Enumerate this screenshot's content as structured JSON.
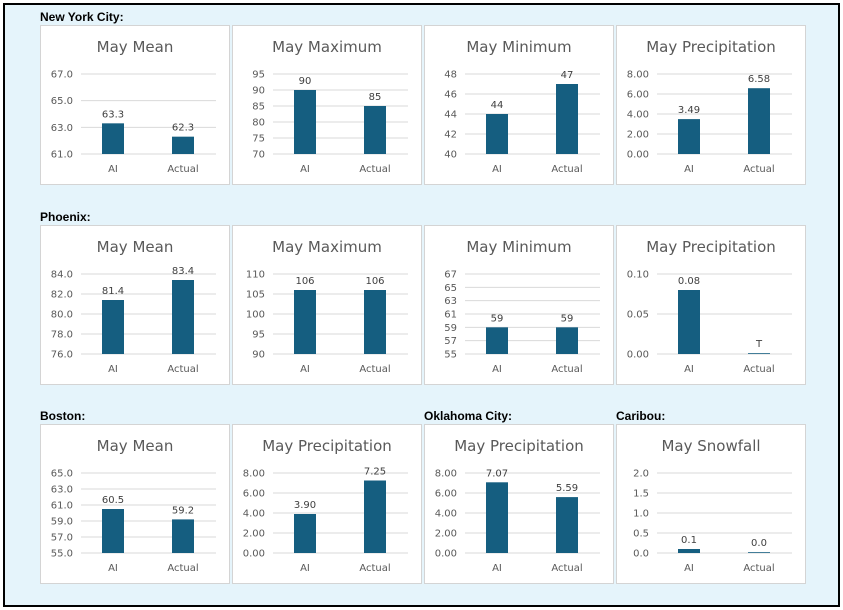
{
  "colors": {
    "bar": "#155e80",
    "grid": "#d9d9d9",
    "background": "#e5f4fb"
  },
  "sections": [
    {
      "label": "New York City:"
    },
    {
      "label": "Phoenix:"
    },
    {
      "label": "Boston:"
    },
    {
      "label": "Oklahoma City:"
    },
    {
      "label": "Caribou:"
    }
  ],
  "chart_data": [
    {
      "type": "bar",
      "group": "New York City:",
      "title": "May Mean",
      "categories": [
        "AI",
        "Actual"
      ],
      "values": [
        63.3,
        62.3
      ],
      "value_labels": [
        "63.3",
        "62.3"
      ],
      "ylim": [
        61.0,
        67.0
      ],
      "yticks": [
        "61.0",
        "63.0",
        "65.0",
        "67.0"
      ],
      "tick_values": [
        61,
        63,
        65,
        67
      ]
    },
    {
      "type": "bar",
      "group": "New York City:",
      "title": "May Maximum",
      "categories": [
        "AI",
        "Actual"
      ],
      "values": [
        90,
        85
      ],
      "value_labels": [
        "90",
        "85"
      ],
      "ylim": [
        70,
        95
      ],
      "yticks": [
        "70",
        "75",
        "80",
        "85",
        "90",
        "95"
      ],
      "tick_values": [
        70,
        75,
        80,
        85,
        90,
        95
      ]
    },
    {
      "type": "bar",
      "group": "New York City:",
      "title": "May Minimum",
      "categories": [
        "AI",
        "Actual"
      ],
      "values": [
        44,
        47
      ],
      "value_labels": [
        "44",
        "47"
      ],
      "ylim": [
        40,
        48
      ],
      "yticks": [
        "40",
        "42",
        "44",
        "46",
        "48"
      ],
      "tick_values": [
        40,
        42,
        44,
        46,
        48
      ]
    },
    {
      "type": "bar",
      "group": "New York City:",
      "title": "May Precipitation",
      "categories": [
        "AI",
        "Actual"
      ],
      "values": [
        3.49,
        6.58
      ],
      "value_labels": [
        "3.49",
        "6.58"
      ],
      "ylim": [
        0,
        8
      ],
      "yticks": [
        "0.00",
        "2.00",
        "4.00",
        "6.00",
        "8.00"
      ],
      "tick_values": [
        0,
        2,
        4,
        6,
        8
      ]
    },
    {
      "type": "bar",
      "group": "Phoenix:",
      "title": "May Mean",
      "categories": [
        "AI",
        "Actual"
      ],
      "values": [
        81.4,
        83.4
      ],
      "value_labels": [
        "81.4",
        "83.4"
      ],
      "ylim": [
        76.0,
        84.0
      ],
      "yticks": [
        "76.0",
        "78.0",
        "80.0",
        "82.0",
        "84.0"
      ],
      "tick_values": [
        76,
        78,
        80,
        82,
        84
      ]
    },
    {
      "type": "bar",
      "group": "Phoenix:",
      "title": "May Maximum",
      "categories": [
        "AI",
        "Actual"
      ],
      "values": [
        106,
        106
      ],
      "value_labels": [
        "106",
        "106"
      ],
      "ylim": [
        90,
        110
      ],
      "yticks": [
        "90",
        "95",
        "100",
        "105",
        "110"
      ],
      "tick_values": [
        90,
        95,
        100,
        105,
        110
      ]
    },
    {
      "type": "bar",
      "group": "Phoenix:",
      "title": "May Minimum",
      "categories": [
        "AI",
        "Actual"
      ],
      "values": [
        59,
        59
      ],
      "value_labels": [
        "59",
        "59"
      ],
      "ylim": [
        55,
        67
      ],
      "yticks": [
        "55",
        "57",
        "59",
        "61",
        "63",
        "65",
        "67"
      ],
      "tick_values": [
        55,
        57,
        59,
        61,
        63,
        65,
        67
      ]
    },
    {
      "type": "bar",
      "group": "Phoenix:",
      "title": "May Precipitation",
      "categories": [
        "AI",
        "Actual"
      ],
      "values": [
        0.08,
        0.001
      ],
      "value_labels": [
        "0.08",
        "T"
      ],
      "ylim": [
        0,
        0.1
      ],
      "yticks": [
        "0.00",
        "0.05",
        "0.10"
      ],
      "tick_values": [
        0,
        0.05,
        0.1
      ]
    },
    {
      "type": "bar",
      "group": "Boston:",
      "title": "May Mean",
      "categories": [
        "AI",
        "Actual"
      ],
      "values": [
        60.5,
        59.2
      ],
      "value_labels": [
        "60.5",
        "59.2"
      ],
      "ylim": [
        55.0,
        65.0
      ],
      "yticks": [
        "55.0",
        "57.0",
        "59.0",
        "61.0",
        "63.0",
        "65.0"
      ],
      "tick_values": [
        55,
        57,
        59,
        61,
        63,
        65
      ]
    },
    {
      "type": "bar",
      "group": "Boston:",
      "title": "May Precipitation",
      "categories": [
        "AI",
        "Actual"
      ],
      "values": [
        3.9,
        7.25
      ],
      "value_labels": [
        "3.90",
        "7.25"
      ],
      "ylim": [
        0,
        8
      ],
      "yticks": [
        "0.00",
        "2.00",
        "4.00",
        "6.00",
        "8.00"
      ],
      "tick_values": [
        0,
        2,
        4,
        6,
        8
      ]
    },
    {
      "type": "bar",
      "group": "Oklahoma City:",
      "title": "May Precipitation",
      "categories": [
        "AI",
        "Actual"
      ],
      "values": [
        7.07,
        5.59
      ],
      "value_labels": [
        "7.07",
        "5.59"
      ],
      "ylim": [
        0,
        8
      ],
      "yticks": [
        "0.00",
        "2.00",
        "4.00",
        "6.00",
        "8.00"
      ],
      "tick_values": [
        0,
        2,
        4,
        6,
        8
      ]
    },
    {
      "type": "bar",
      "group": "Caribou:",
      "title": "May Snowfall",
      "categories": [
        "AI",
        "Actual"
      ],
      "values": [
        0.1,
        0.0
      ],
      "value_labels": [
        "0.1",
        "0.0"
      ],
      "ylim": [
        0,
        2
      ],
      "yticks": [
        "0.0",
        "0.5",
        "1.0",
        "1.5",
        "2.0"
      ],
      "tick_values": [
        0,
        0.5,
        1,
        1.5,
        2
      ]
    }
  ]
}
